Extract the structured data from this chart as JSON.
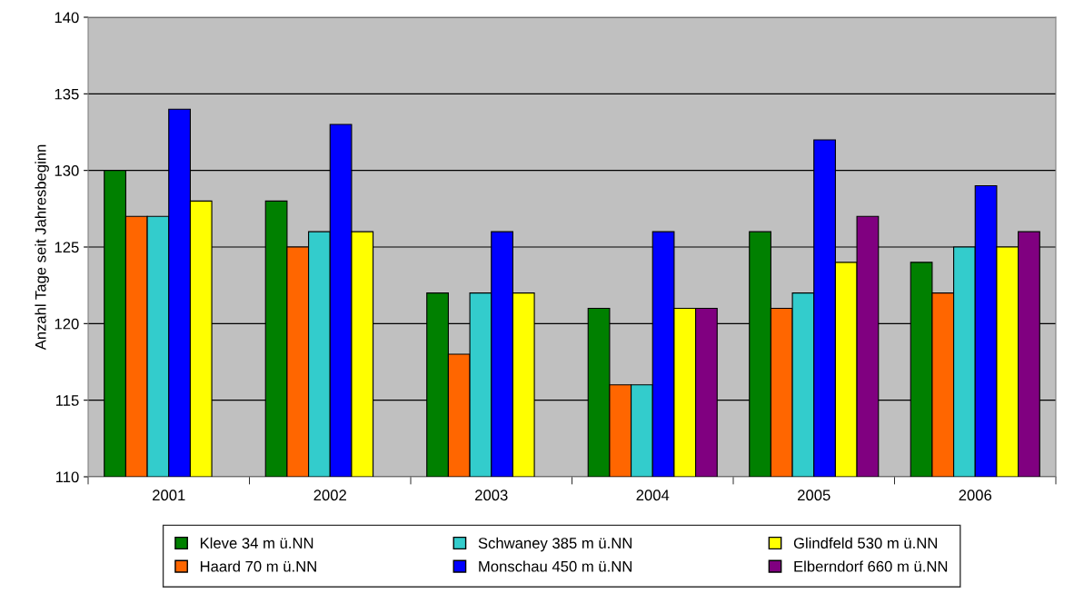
{
  "chart_data": {
    "type": "bar",
    "ylabel": "Anzahl Tage seit Jahresbeginn",
    "categories": [
      "2001",
      "2002",
      "2003",
      "2004",
      "2005",
      "2006"
    ],
    "series": [
      {
        "name": "Kleve 34 m ü.NN",
        "color": "#008000",
        "values": [
          130,
          128,
          122,
          121,
          126,
          124
        ]
      },
      {
        "name": "Haard 70 m ü.NN",
        "color": "#ff6600",
        "values": [
          127,
          125,
          118,
          116,
          121,
          122
        ]
      },
      {
        "name": "Schwaney 385 m ü.NN",
        "color": "#33cccc",
        "values": [
          127,
          126,
          122,
          116,
          122,
          125
        ]
      },
      {
        "name": "Monschau 450 m ü.NN",
        "color": "#0000ff",
        "values": [
          134,
          133,
          126,
          126,
          132,
          129
        ]
      },
      {
        "name": "Glindfeld 530 m ü.NN",
        "color": "#ffff00",
        "values": [
          128,
          126,
          122,
          121,
          124,
          125
        ]
      },
      {
        "name": "Elberndorf 660 m ü.NN",
        "color": "#800080",
        "values": [
          null,
          null,
          null,
          121,
          127,
          126
        ]
      }
    ],
    "ylim": [
      110,
      140
    ],
    "yticks": [
      110,
      115,
      120,
      125,
      130,
      135,
      140
    ],
    "grid": "y",
    "legend": "bottom"
  }
}
